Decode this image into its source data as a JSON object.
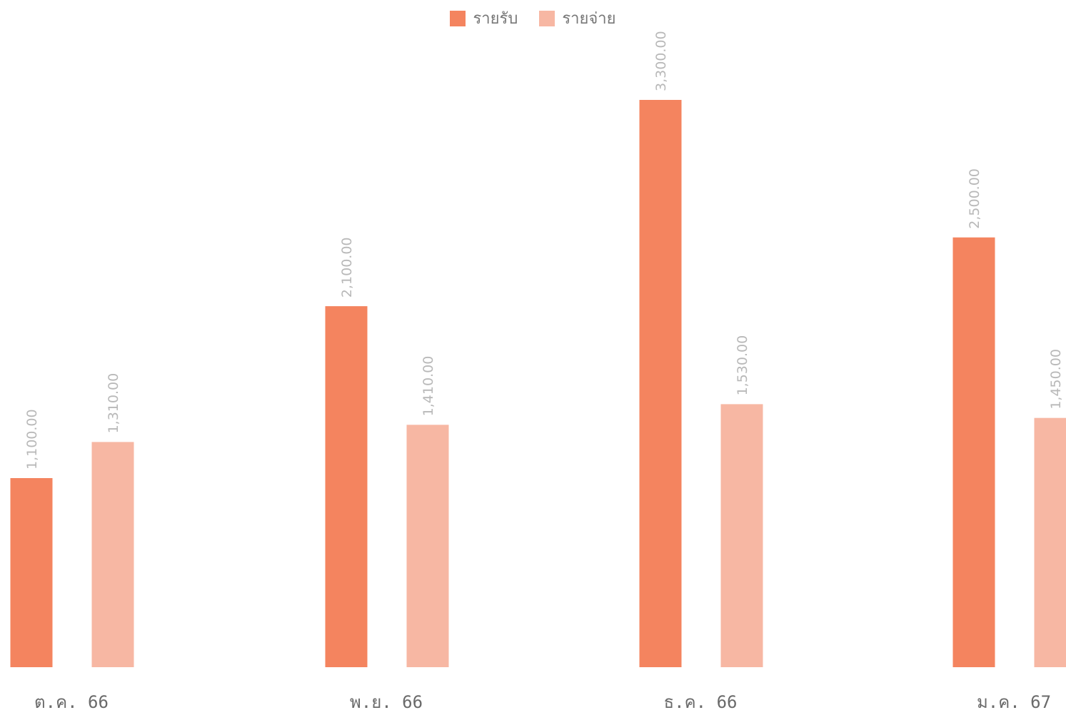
{
  "chart_data": {
    "type": "bar",
    "title": "",
    "xlabel": "",
    "ylabel": "",
    "categories": [
      "ต.ค. 66",
      "พ.ย. 66",
      "ธ.ค. 66",
      "ม.ค. 67"
    ],
    "series": [
      {
        "name": "รายรับ",
        "color": "#f4845f",
        "values": [
          1100,
          2100,
          3300,
          2500
        ],
        "labels": [
          "1,100.00",
          "2,100.00",
          "3,300.00",
          "2,500.00"
        ]
      },
      {
        "name": "รายจ่าย",
        "color": "#f7b7a3",
        "values": [
          1310,
          1410,
          1530,
          1450
        ],
        "labels": [
          "1,310.00",
          "1,410.00",
          "1,530.00",
          "1,450.00"
        ]
      }
    ],
    "ylim": [
      0,
      3300
    ],
    "grid": false,
    "legend_position": "top-center"
  }
}
